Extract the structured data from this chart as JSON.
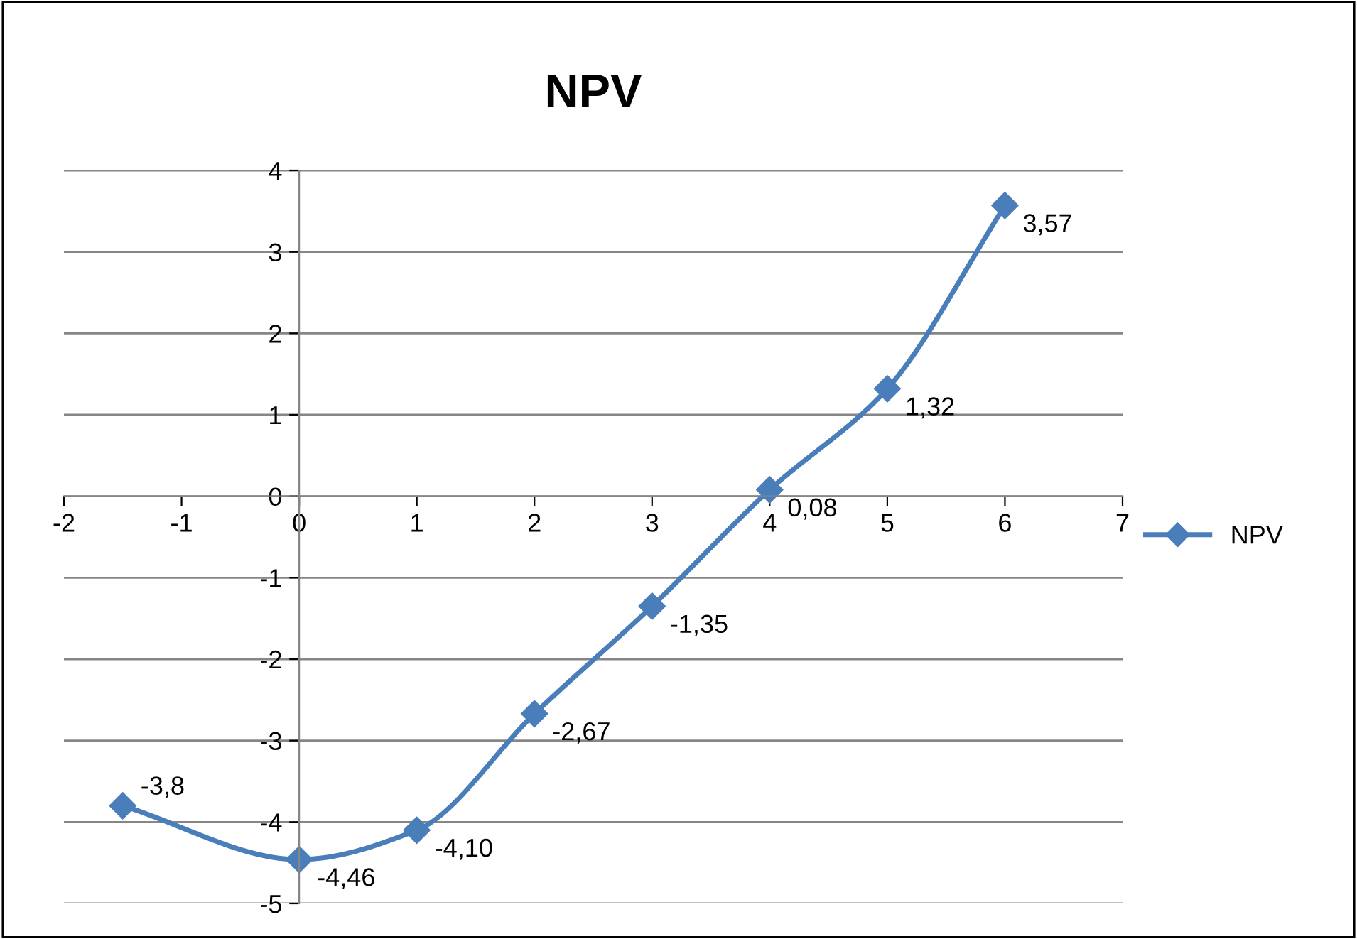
{
  "chart_data": {
    "type": "line",
    "title": "NPV",
    "x": [
      -1.5,
      0,
      1,
      2,
      3,
      4,
      5,
      6
    ],
    "series": [
      {
        "name": "NPV",
        "color": "#4a7ebb",
        "values": [
          -3.8,
          -4.46,
          -4.1,
          -2.67,
          -1.35,
          0.08,
          1.32,
          3.57
        ],
        "value_labels": [
          "-3,8",
          "-4,46",
          "-4,10",
          "-2,67",
          "-1,35",
          "0,08",
          "1,32",
          "3,57"
        ]
      }
    ],
    "xlim": [
      -2,
      7
    ],
    "xticks": [
      -2,
      -1,
      0,
      1,
      2,
      3,
      4,
      5,
      6,
      7
    ],
    "ylim": [
      -5,
      4
    ],
    "yticks": [
      -5,
      -4,
      -3,
      -2,
      -1,
      0,
      1,
      2,
      3,
      4
    ],
    "grid": "y",
    "legend": "right",
    "marker": "diamond",
    "line_style": "solid"
  }
}
